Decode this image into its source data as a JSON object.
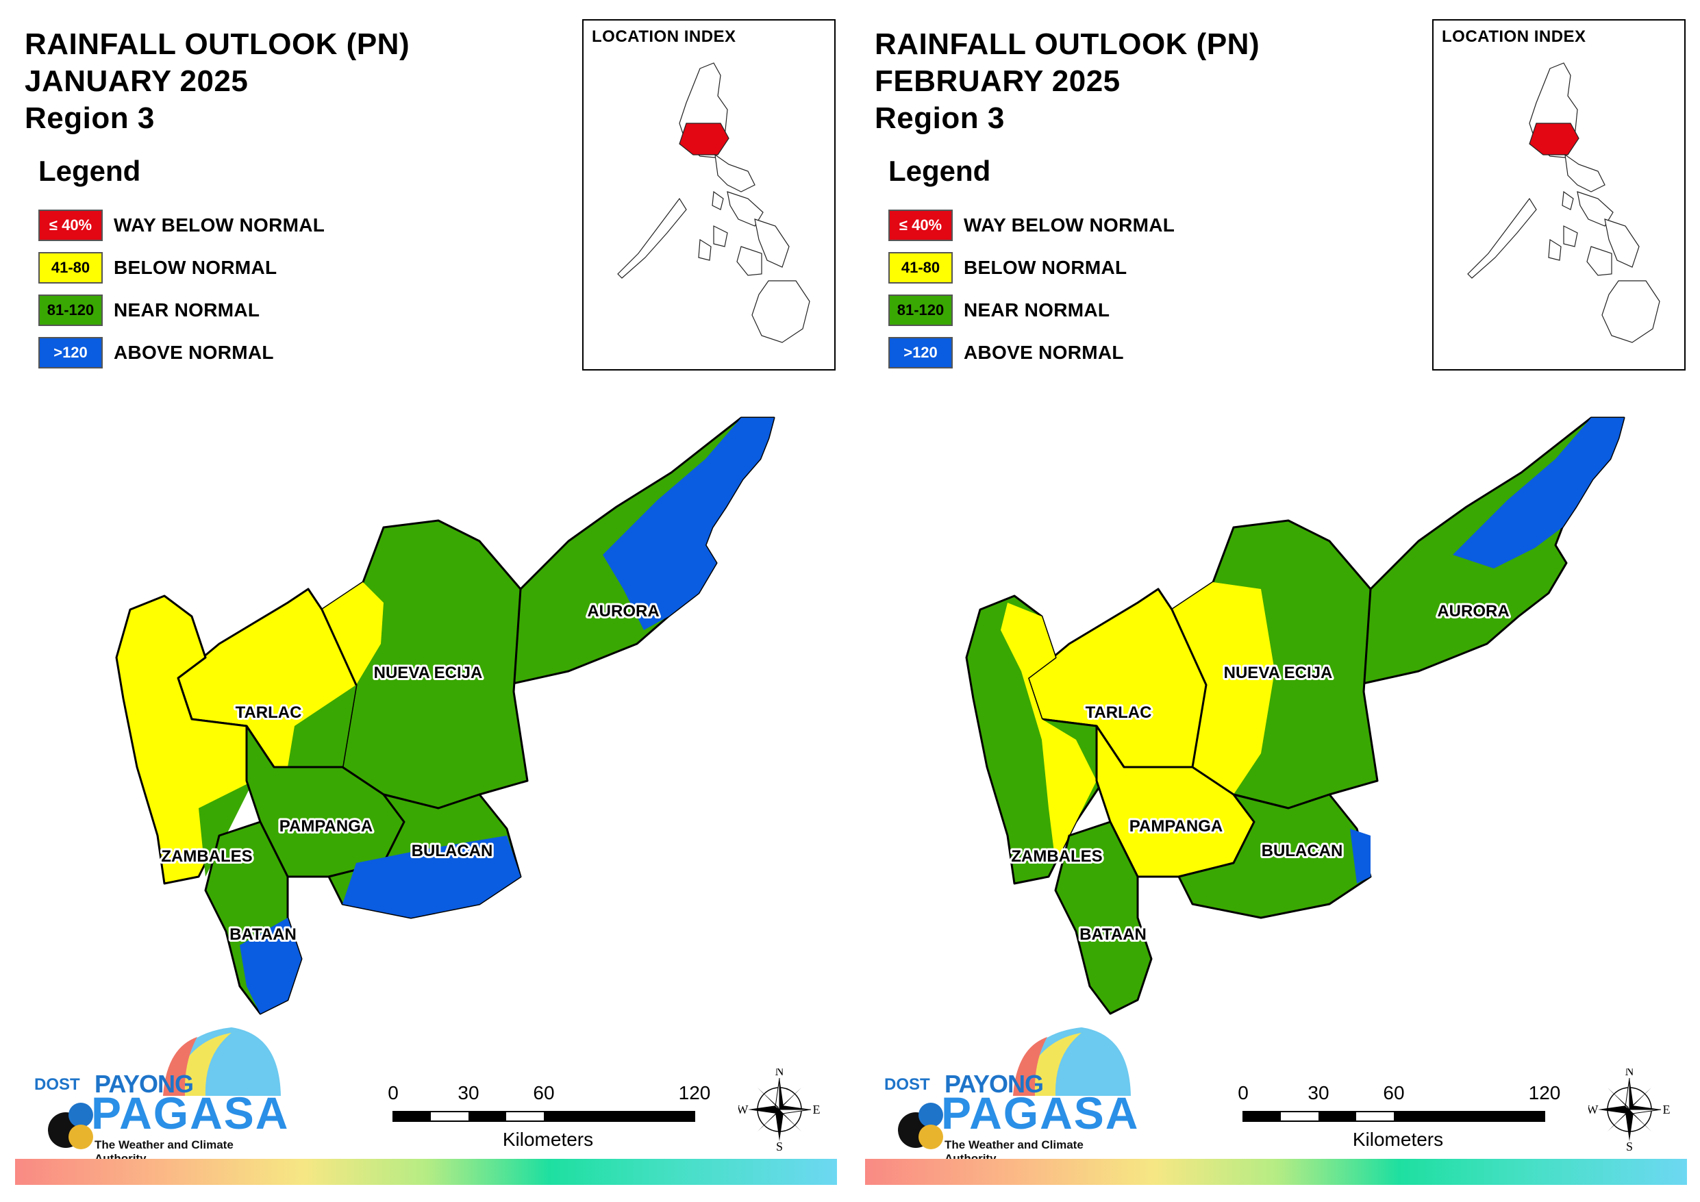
{
  "panels": [
    {
      "title_line1": "RAINFALL OUTLOOK (PN)",
      "title_line2": "JANUARY 2025",
      "title_line3": "Region 3",
      "provinces": {
        "aurora": "AURORA",
        "nueva_ecija": "NUEVA ECIJA",
        "tarlac": "TARLAC",
        "pampanga": "PAMPANGA",
        "bulacan": "BULACAN",
        "zambales": "ZAMBALES",
        "bataan": "BATAAN"
      }
    },
    {
      "title_line1": "RAINFALL OUTLOOK (PN)",
      "title_line2": "FEBRUARY 2025",
      "title_line3": "Region 3",
      "provinces": {
        "aurora": "AURORA",
        "nueva_ecija": "NUEVA ECIJA",
        "tarlac": "TARLAC",
        "pampanga": "PAMPANGA",
        "bulacan": "BULACAN",
        "zambales": "ZAMBALES",
        "bataan": "BATAAN"
      }
    }
  ],
  "legend": {
    "title": "Legend",
    "items": [
      {
        "range": "≤ 40%",
        "label": "WAY BELOW NORMAL",
        "color": "#e30613",
        "text_color": "#ffffff"
      },
      {
        "range": "41-80",
        "label": "BELOW NORMAL",
        "color": "#ffff00",
        "text_color": "#000000"
      },
      {
        "range": "81-120",
        "label": "NEAR NORMAL",
        "color": "#3aa802",
        "text_color": "#000000"
      },
      {
        "range": ">120",
        "label": "ABOVE NORMAL",
        "color": "#0a5ce0",
        "text_color": "#ffffff"
      }
    ]
  },
  "location_index": {
    "title": "LOCATION INDEX",
    "highlight_color": "#e30613"
  },
  "scale_bar": {
    "ticks": [
      "0",
      "30",
      "60",
      "120"
    ],
    "unit": "Kilometers"
  },
  "compass": {
    "n": "N",
    "s": "S",
    "e": "E",
    "w": "W"
  },
  "logo": {
    "dost": "DOST",
    "payong": "PAYONG",
    "pagasa": "PAGASA",
    "tagline": "The Weather and Climate Authority"
  },
  "colors": {
    "red": "#e30613",
    "yellow": "#ffff00",
    "green": "#3aa802",
    "blue": "#0a5ce0"
  }
}
